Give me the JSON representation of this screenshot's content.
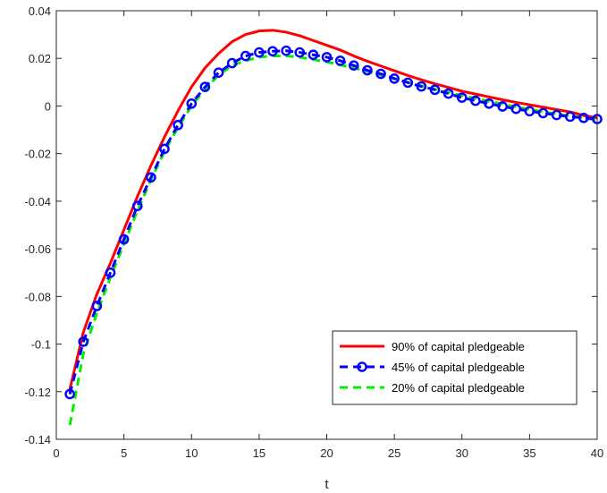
{
  "chart_data": {
    "type": "line",
    "xlabel": "t",
    "ylabel": "",
    "title": "",
    "xlim": [
      0,
      40
    ],
    "ylim": [
      -0.14,
      0.04
    ],
    "xticks": [
      0,
      5,
      10,
      15,
      20,
      25,
      30,
      35,
      40
    ],
    "xtick_labels": [
      "0",
      "5",
      "10",
      "15",
      "20",
      "25",
      "30",
      "35",
      "40"
    ],
    "yticks": [
      -0.14,
      -0.12,
      -0.1,
      -0.08,
      -0.06,
      -0.04,
      -0.02,
      0,
      0.02,
      0.04
    ],
    "ytick_labels": [
      "-0.14",
      "-0.12",
      "-0.1",
      "-0.08",
      "-0.06",
      "-0.04",
      "-0.02",
      "0",
      "0.02",
      "0.04"
    ],
    "grid": false,
    "legend_position": "bottom-right",
    "x": [
      1,
      2,
      3,
      4,
      5,
      6,
      7,
      8,
      9,
      10,
      11,
      12,
      13,
      14,
      15,
      16,
      17,
      18,
      19,
      20,
      21,
      22,
      23,
      24,
      25,
      26,
      27,
      28,
      29,
      30,
      31,
      32,
      33,
      34,
      35,
      36,
      37,
      38,
      39,
      40
    ],
    "series": [
      {
        "name": "90% of capital pledgeable",
        "color": "#ff0000",
        "style": "solid",
        "marker": "none",
        "values": [
          -0.119,
          -0.095,
          -0.079,
          -0.066,
          -0.052,
          -0.038,
          -0.025,
          -0.013,
          -0.002,
          0.008,
          0.016,
          0.022,
          0.027,
          0.03,
          0.0315,
          0.0318,
          0.031,
          0.0295,
          0.0275,
          0.0255,
          0.0235,
          0.021,
          0.0188,
          0.0168,
          0.0148,
          0.0128,
          0.011,
          0.0093,
          0.0078,
          0.0062,
          0.005,
          0.0038,
          0.0026,
          0.0015,
          0.0005,
          -0.0005,
          -0.0015,
          -0.0025,
          -0.004,
          -0.005
        ]
      },
      {
        "name": "45% of capital pledgeable",
        "color": "#0000ff",
        "style": "dashed",
        "marker": "circle",
        "values": [
          -0.121,
          -0.099,
          -0.084,
          -0.07,
          -0.056,
          -0.042,
          -0.03,
          -0.018,
          -0.008,
          0.001,
          0.008,
          0.014,
          0.018,
          0.021,
          0.0225,
          0.023,
          0.0232,
          0.0225,
          0.0215,
          0.0205,
          0.019,
          0.017,
          0.015,
          0.0135,
          0.0115,
          0.0098,
          0.0082,
          0.0068,
          0.0052,
          0.0035,
          0.0022,
          0.001,
          -0.0002,
          -0.0012,
          -0.0022,
          -0.003,
          -0.0038,
          -0.0045,
          -0.005,
          -0.0055
        ]
      },
      {
        "name": "20% of capital pledgeable",
        "color": "#00ee00",
        "style": "dashed",
        "marker": "none",
        "values": [
          -0.134,
          -0.104,
          -0.087,
          -0.072,
          -0.058,
          -0.044,
          -0.031,
          -0.019,
          -0.009,
          0.0,
          0.007,
          0.013,
          0.017,
          0.019,
          0.0205,
          0.021,
          0.021,
          0.0205,
          0.0195,
          0.0185,
          0.0172,
          0.016,
          0.0146,
          0.013,
          0.0115,
          0.0099,
          0.0084,
          0.007,
          0.0057,
          0.0044,
          0.0032,
          0.002,
          0.0008,
          -0.0004,
          -0.0014,
          -0.0024,
          -0.0034,
          -0.0042,
          -0.005,
          -0.006
        ]
      }
    ]
  }
}
